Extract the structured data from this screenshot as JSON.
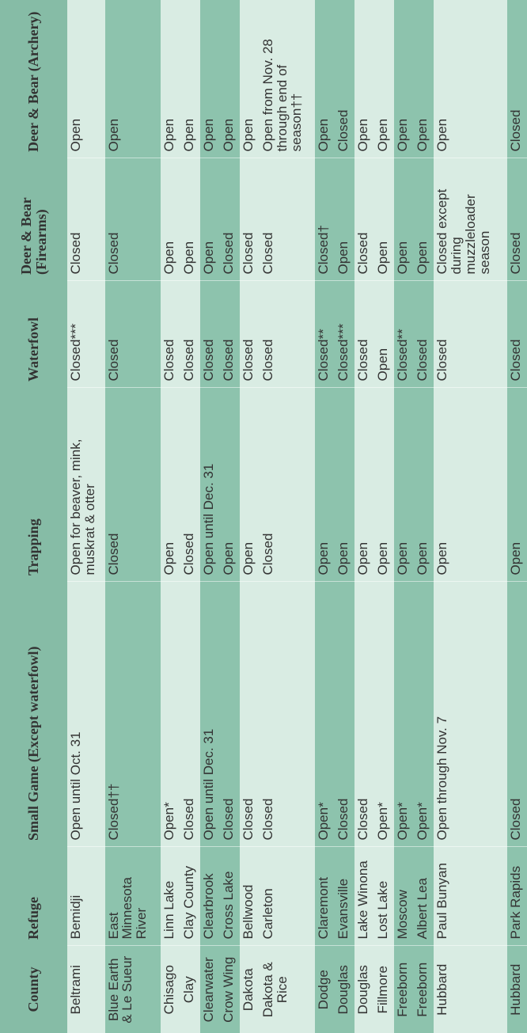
{
  "table": {
    "headers": [
      "County",
      "Refuge",
      "Small Game (Except waterfowl)",
      "Trapping",
      "Waterfowl",
      "Deer & Bear (Firearms)",
      "Deer & Bear (Archery)"
    ],
    "groups": [
      [
        [
          "Beltrami",
          "Bemidji",
          "Open until Oct. 31",
          "Open for beaver, mink, muskrat & otter",
          "Closed***",
          "Closed",
          "Open"
        ]
      ],
      [
        [
          "Blue Earth & Le Sueur",
          "East Minnesota River",
          "Closed††",
          "Closed",
          "Closed",
          "Closed",
          "Open"
        ]
      ],
      [
        [
          "Chisago",
          "Linn Lake",
          "Open*",
          "Open",
          "Closed",
          "Open",
          "Open"
        ],
        [
          "Clay",
          "Clay County",
          "Closed",
          "Closed",
          "Closed",
          "Open",
          "Open"
        ]
      ],
      [
        [
          "Clearwater",
          "Clearbrook",
          "Open until Dec. 31",
          "Open until Dec. 31",
          "Closed",
          "Open",
          "Open"
        ],
        [
          "Crow Wing",
          "Cross Lake",
          "Closed",
          "Open",
          "Closed",
          "Closed",
          "Open"
        ]
      ],
      [
        [
          "Dakota",
          "Bellwood",
          "Closed",
          "Open",
          "Closed",
          "Closed",
          "Open"
        ],
        [
          "Dakota & Rice",
          "Carleton",
          "Closed",
          "Closed",
          "Closed",
          "Closed",
          "Open from Nov. 28 through end of season††"
        ]
      ],
      [
        [
          "Dodge",
          "Claremont",
          "Open*",
          "Open",
          "Closed**",
          "Closed†",
          "Open"
        ],
        [
          "Douglas",
          "Evansville",
          "Closed",
          "Open",
          "Closed***",
          "Open",
          "Closed"
        ]
      ],
      [
        [
          "Douglas",
          "Lake Winona",
          "Closed",
          "Open",
          "Closed",
          "Closed",
          "Open"
        ],
        [
          "Fillmore",
          "Lost Lake",
          "Open*",
          "Open",
          "Open",
          "Open",
          "Open"
        ]
      ],
      [
        [
          "Freeborn",
          "Moscow",
          "Open*",
          "Open",
          "Closed**",
          "Open",
          "Open"
        ],
        [
          "Freeborn",
          "Albert Lea",
          "Open*",
          "Open",
          "Closed",
          "Open",
          "Open"
        ]
      ],
      [
        [
          "Hubbard",
          "Paul Bunyan",
          "Open through Nov. 7",
          "Open",
          "Closed",
          "Closed except during muzzleloader season",
          "Open"
        ]
      ],
      [
        [
          "Hubbard",
          "Park Rapids",
          "Closed",
          "Open",
          "Closed",
          "Closed",
          "Closed"
        ]
      ]
    ]
  }
}
